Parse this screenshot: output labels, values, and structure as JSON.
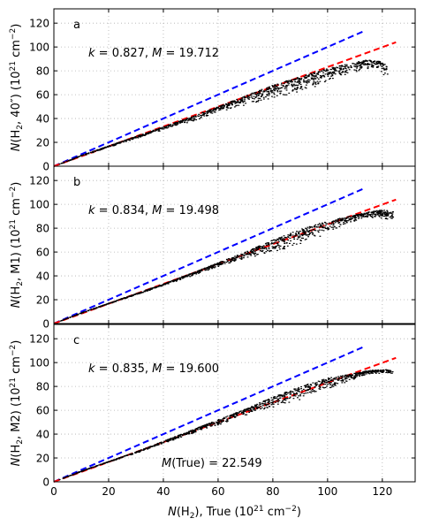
{
  "chart_data": {
    "type": "scatter",
    "shared_x": {
      "label_main": "N",
      "label_sub": "(H",
      "label_rest": "),  True (10",
      "label_exp": "21",
      "label_unit": " cm",
      "label_unit_exp": "−2",
      "label_close": ")",
      "range": [
        0,
        132
      ],
      "ticks": [
        "0",
        "20",
        "40",
        "60",
        "80",
        "100",
        "120"
      ]
    },
    "y_range": [
      0,
      132
    ],
    "y_ticks": [
      "0",
      "20",
      "40",
      "60",
      "80",
      "100",
      "120"
    ],
    "grid": true,
    "reference_lines": [
      {
        "color": "#0000ff",
        "style": "dashed",
        "x": [
          0,
          113
        ],
        "y": [
          0,
          113
        ]
      },
      {
        "color": "#ff0000",
        "style": "dashed",
        "x": [
          0,
          125
        ],
        "y": [
          0,
          104
        ]
      }
    ],
    "panels": [
      {
        "letter": "a",
        "ylabel_pre": "N",
        "ylabel_mid": "(H",
        "ylabel_tail": ",  40″) (10",
        "ylabel_exp": "21",
        "ylabel_unit": " cm",
        "ylabel_unit_exp": "−2",
        "ylabel_close": ")",
        "k_label": "k",
        "k_value": " = 0.827,  ",
        "m_label": "M",
        "m_value": " = 19.712",
        "points_envelope": {
          "x": [
            2,
            10,
            20,
            30,
            40,
            50,
            60,
            70,
            80,
            90,
            100,
            108,
            114,
            118,
            120,
            122
          ],
          "y_upper": [
            1.8,
            9,
            17,
            25,
            33,
            41,
            50,
            59,
            68,
            75,
            82,
            86,
            89,
            89,
            87,
            84
          ],
          "y_lower": [
            1.4,
            7.5,
            15,
            22,
            29,
            35,
            41,
            47,
            50,
            55,
            64,
            72,
            77,
            76,
            72,
            66
          ]
        }
      },
      {
        "letter": "b",
        "ylabel_pre": "N",
        "ylabel_mid": "(H",
        "ylabel_tail": ",  M1) (10",
        "ylabel_exp": "21",
        "ylabel_unit": " cm",
        "ylabel_unit_exp": "−2",
        "ylabel_close": ")",
        "k_label": "k",
        "k_value": " = 0.834,  ",
        "m_label": "M",
        "m_value": " = 19.498",
        "points_envelope": {
          "x": [
            2,
            10,
            20,
            30,
            40,
            50,
            60,
            70,
            80,
            90,
            100,
            108,
            114,
            118,
            122,
            124
          ],
          "y_upper": [
            1.8,
            9,
            17,
            25,
            33,
            42,
            51,
            60,
            70,
            79,
            86,
            90,
            93,
            95,
            95,
            94
          ],
          "y_lower": [
            1.5,
            8,
            16,
            23,
            31,
            38,
            45,
            50,
            54,
            59,
            69,
            80,
            86,
            85,
            83,
            82
          ]
        }
      },
      {
        "letter": "c",
        "ylabel_pre": "N",
        "ylabel_mid": "(H",
        "ylabel_tail": ",  M2) (10",
        "ylabel_exp": "21",
        "ylabel_unit": " cm",
        "ylabel_unit_exp": "−2",
        "ylabel_close": ")",
        "k_label": "k",
        "k_value": " = 0.835,  ",
        "m_label": "M",
        "m_value": " = 19.600",
        "extra_label": "M",
        "extra_value": "(True) = 22.549",
        "points_envelope": {
          "x": [
            2,
            10,
            20,
            30,
            40,
            50,
            60,
            70,
            80,
            90,
            100,
            108,
            114,
            118,
            122,
            124
          ],
          "y_upper": [
            1.8,
            9,
            17,
            25,
            34,
            43,
            52,
            61,
            71,
            80,
            87,
            90,
            93,
            94,
            94,
            93
          ],
          "y_lower": [
            1.5,
            8,
            16,
            23,
            31,
            38,
            45,
            52,
            57,
            62,
            71,
            80,
            88,
            89,
            89,
            89
          ]
        }
      }
    ]
  }
}
